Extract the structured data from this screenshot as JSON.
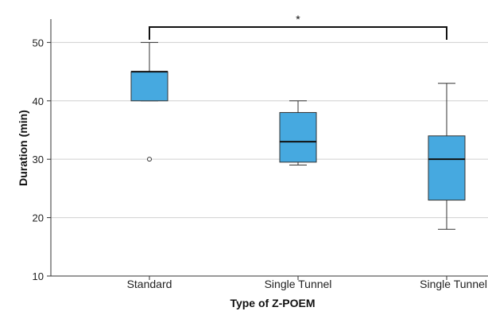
{
  "chart_data": {
    "type": "box",
    "title": "",
    "xlabel": "Type of Z-POEM",
    "ylabel": "Duration (min)",
    "ylim": [
      10,
      54
    ],
    "yticks": [
      10,
      20,
      30,
      40,
      50
    ],
    "grid": "horizontal",
    "colors": {
      "box": "#46a9e0",
      "grid": "#d0d0d0",
      "whisker": "#333333",
      "median": "#111111"
    },
    "categories": [
      "Standard",
      "Single Tunnel",
      "Single Tunnel"
    ],
    "boxes": [
      {
        "min": 40,
        "q1": 40,
        "median": 45,
        "q3": 45,
        "max": 50,
        "outliers": [
          30
        ]
      },
      {
        "min": 29,
        "q1": 29.5,
        "median": 33,
        "q3": 38,
        "max": 40,
        "outliers": []
      },
      {
        "min": 18,
        "q1": 23,
        "median": 30,
        "q3": 34,
        "max": 43,
        "outliers": []
      }
    ],
    "annotations": [
      {
        "text": "*",
        "from_category": 0,
        "to_category": 2
      }
    ]
  }
}
